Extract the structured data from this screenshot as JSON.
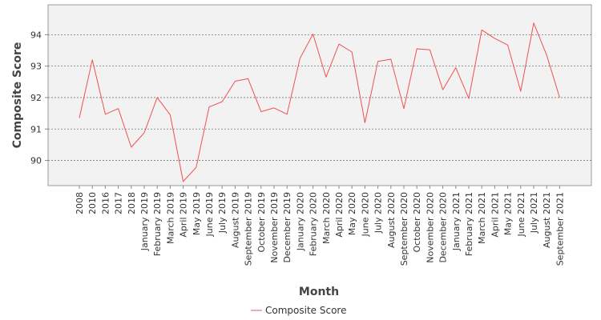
{
  "chart_data": {
    "type": "line",
    "xlabel": "Month",
    "ylabel": "Composite Score",
    "ylim": [
      89.2,
      94.95
    ],
    "yticks": [
      90,
      91,
      92,
      93,
      94
    ],
    "grid": "horizontal dashed",
    "legend_position": "bottom-center",
    "categories": [
      "2008",
      "2010",
      "2016",
      "2017",
      "2018",
      "January 2019",
      "February 2019",
      "March 2019",
      "April 2019",
      "May 2019",
      "June 2019",
      "July 2019",
      "August 2019",
      "September 2019",
      "October 2019",
      "November 2019",
      "December 2019",
      "January 2020",
      "February 2020",
      "March 2020",
      "April 2020",
      "May 2020",
      "June 2020",
      "July 2020",
      "August 2020",
      "September 2020",
      "October 2020",
      "November 2020",
      "December 2020",
      "January 2021",
      "February 2021",
      "March 2021",
      "April 2021",
      "May 2021",
      "June 2021",
      "July 2021",
      "August 2021",
      "September 2021"
    ],
    "series": [
      {
        "name": "Composite Score",
        "color": "#f05050",
        "values": [
          91.35,
          93.2,
          91.47,
          91.65,
          90.42,
          90.88,
          92.0,
          91.45,
          89.33,
          89.78,
          91.7,
          91.87,
          92.52,
          92.6,
          91.55,
          91.67,
          91.47,
          93.25,
          94.02,
          92.65,
          93.7,
          93.45,
          91.2,
          93.15,
          93.22,
          91.65,
          93.55,
          93.52,
          92.25,
          92.95,
          91.97,
          94.15,
          93.88,
          93.67,
          92.2,
          94.37,
          93.35,
          92.0
        ]
      }
    ]
  }
}
